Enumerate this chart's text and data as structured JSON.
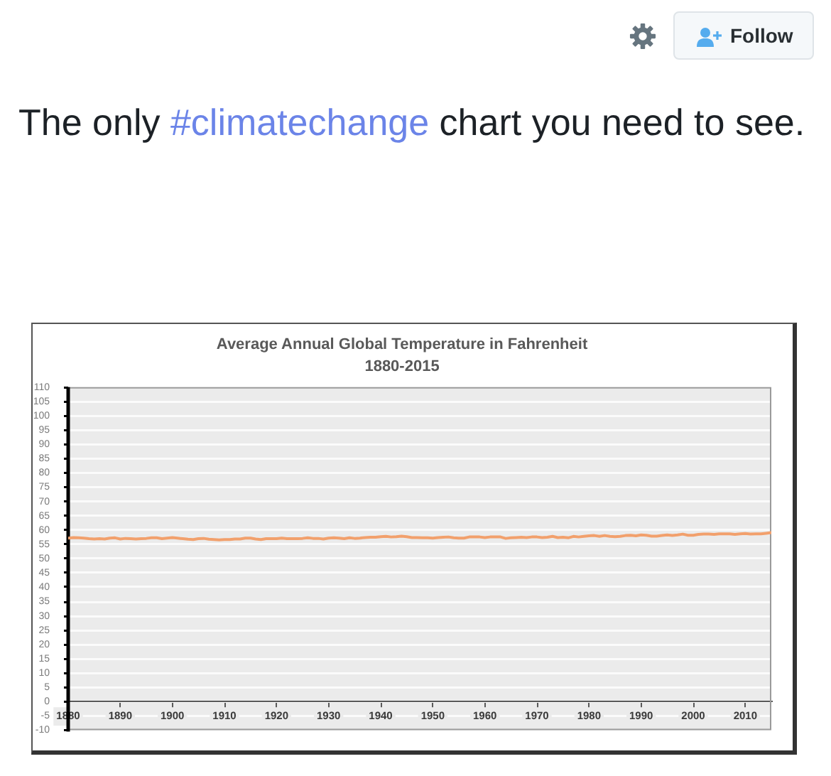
{
  "chart_data": {
    "type": "line",
    "title": "Average Annual Global Temperature in Fahrenheit",
    "subtitle": "1880-2015",
    "annotations": [
      "The only #climatechange chart you need to see.",
      "Follow"
    ],
    "x": [
      1880,
      1881,
      1882,
      1883,
      1884,
      1885,
      1886,
      1887,
      1888,
      1889,
      1890,
      1891,
      1892,
      1893,
      1894,
      1895,
      1896,
      1897,
      1898,
      1899,
      1900,
      1901,
      1902,
      1903,
      1904,
      1905,
      1906,
      1907,
      1908,
      1909,
      1910,
      1911,
      1912,
      1913,
      1914,
      1915,
      1916,
      1917,
      1918,
      1919,
      1920,
      1921,
      1922,
      1923,
      1924,
      1925,
      1926,
      1927,
      1928,
      1929,
      1930,
      1931,
      1932,
      1933,
      1934,
      1935,
      1936,
      1937,
      1938,
      1939,
      1940,
      1941,
      1942,
      1943,
      1944,
      1945,
      1946,
      1947,
      1948,
      1949,
      1950,
      1951,
      1952,
      1953,
      1954,
      1955,
      1956,
      1957,
      1958,
      1959,
      1960,
      1961,
      1962,
      1963,
      1964,
      1965,
      1966,
      1967,
      1968,
      1969,
      1970,
      1971,
      1972,
      1973,
      1974,
      1975,
      1976,
      1977,
      1978,
      1979,
      1980,
      1981,
      1982,
      1983,
      1984,
      1985,
      1986,
      1987,
      1988,
      1989,
      1990,
      1991,
      1992,
      1993,
      1994,
      1995,
      1996,
      1997,
      1998,
      1999,
      2000,
      2001,
      2002,
      2003,
      2004,
      2005,
      2006,
      2007,
      2008,
      2009,
      2010,
      2011,
      2012,
      2013,
      2014,
      2015
    ],
    "series": [
      {
        "color": "#f2a06c",
        "values": [
          57.2,
          57.4,
          57.3,
          57.2,
          57.0,
          56.9,
          57.0,
          56.9,
          57.2,
          57.3,
          56.9,
          57.1,
          57.0,
          56.9,
          57.0,
          57.1,
          57.3,
          57.3,
          57.0,
          57.2,
          57.4,
          57.2,
          57.0,
          56.8,
          56.7,
          57.0,
          57.1,
          56.8,
          56.7,
          56.6,
          56.7,
          56.7,
          56.9,
          56.9,
          57.2,
          57.2,
          56.9,
          56.7,
          57.0,
          57.0,
          57.0,
          57.2,
          57.0,
          57.0,
          57.0,
          57.1,
          57.3,
          57.1,
          57.1,
          56.9,
          57.2,
          57.3,
          57.2,
          57.0,
          57.3,
          57.1,
          57.2,
          57.4,
          57.5,
          57.5,
          57.7,
          57.8,
          57.6,
          57.7,
          57.9,
          57.7,
          57.4,
          57.4,
          57.3,
          57.3,
          57.2,
          57.4,
          57.5,
          57.6,
          57.3,
          57.2,
          57.2,
          57.6,
          57.6,
          57.6,
          57.4,
          57.6,
          57.6,
          57.6,
          57.1,
          57.3,
          57.4,
          57.5,
          57.4,
          57.6,
          57.6,
          57.4,
          57.5,
          57.8,
          57.4,
          57.5,
          57.3,
          57.8,
          57.6,
          57.8,
          58.0,
          58.1,
          57.8,
          58.1,
          57.8,
          57.7,
          57.8,
          58.1,
          58.2,
          58.0,
          58.3,
          58.2,
          57.9,
          57.9,
          58.1,
          58.3,
          58.1,
          58.3,
          58.6,
          58.2,
          58.2,
          58.5,
          58.6,
          58.6,
          58.5,
          58.7,
          58.7,
          58.7,
          58.5,
          58.7,
          58.8,
          58.6,
          58.7,
          58.7,
          58.9,
          59.1
        ]
      }
    ],
    "xlim": [
      1880,
      2015
    ],
    "xticks": [
      1880,
      1890,
      1900,
      1910,
      1920,
      1930,
      1940,
      1950,
      1960,
      1970,
      1980,
      1990,
      2000,
      2010
    ],
    "ylim": [
      -10,
      110
    ],
    "yticks": [
      -10,
      -5,
      0,
      5,
      10,
      15,
      20,
      25,
      30,
      35,
      40,
      45,
      50,
      55,
      60,
      65,
      70,
      75,
      80,
      85,
      90,
      95,
      100,
      105,
      110
    ],
    "grid": "y",
    "legend": false,
    "marker": "none"
  }
}
